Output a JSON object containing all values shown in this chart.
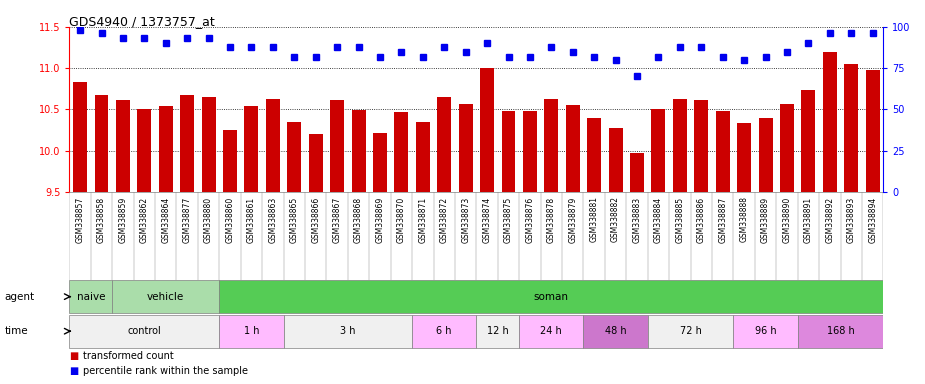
{
  "title": "GDS4940 / 1373757_at",
  "samples": [
    "GSM338857",
    "GSM338858",
    "GSM338859",
    "GSM338862",
    "GSM338864",
    "GSM338877",
    "GSM338880",
    "GSM338860",
    "GSM338861",
    "GSM338863",
    "GSM338865",
    "GSM338866",
    "GSM338867",
    "GSM338868",
    "GSM338869",
    "GSM338870",
    "GSM338871",
    "GSM338872",
    "GSM338873",
    "GSM338874",
    "GSM338875",
    "GSM338876",
    "GSM338878",
    "GSM338879",
    "GSM338881",
    "GSM338882",
    "GSM338883",
    "GSM338884",
    "GSM338885",
    "GSM338886",
    "GSM338887",
    "GSM338888",
    "GSM338889",
    "GSM338890",
    "GSM338891",
    "GSM338892",
    "GSM338893",
    "GSM338894"
  ],
  "bar_values": [
    10.83,
    10.67,
    10.61,
    10.5,
    10.54,
    10.67,
    10.65,
    10.25,
    10.54,
    10.63,
    10.35,
    10.2,
    10.62,
    10.49,
    10.22,
    10.47,
    10.35,
    10.65,
    10.57,
    11.0,
    10.48,
    10.48,
    10.63,
    10.55,
    10.4,
    10.27,
    9.97,
    10.5,
    10.63,
    10.61,
    10.48,
    10.33,
    10.4,
    10.57,
    10.74,
    11.2,
    11.05,
    10.98
  ],
  "percentile_values": [
    98,
    96,
    93,
    93,
    90,
    93,
    93,
    88,
    88,
    88,
    82,
    82,
    88,
    88,
    82,
    85,
    82,
    88,
    85,
    90,
    82,
    82,
    88,
    85,
    82,
    80,
    70,
    82,
    88,
    88,
    82,
    80,
    82,
    85,
    90,
    96,
    96,
    96
  ],
  "ylim_left": [
    9.5,
    11.5
  ],
  "ylim_right": [
    0,
    100
  ],
  "yticks_left": [
    9.5,
    10.0,
    10.5,
    11.0,
    11.5
  ],
  "yticks_right": [
    0,
    25,
    50,
    75,
    100
  ],
  "bar_color": "#cc0000",
  "dot_color": "#0000ee",
  "agent_groups": [
    {
      "label": "naive",
      "start": 0,
      "end": 2,
      "color": "#aaddaa"
    },
    {
      "label": "vehicle",
      "start": 2,
      "end": 7,
      "color": "#aaddaa"
    },
    {
      "label": "soman",
      "start": 7,
      "end": 38,
      "color": "#55cc55"
    }
  ],
  "time_groups": [
    {
      "label": "control",
      "start": 0,
      "end": 7,
      "color": "#f0f0f0"
    },
    {
      "label": "1 h",
      "start": 7,
      "end": 10,
      "color": "#ffbbff"
    },
    {
      "label": "3 h",
      "start": 10,
      "end": 16,
      "color": "#f0f0f0"
    },
    {
      "label": "6 h",
      "start": 16,
      "end": 19,
      "color": "#ffbbff"
    },
    {
      "label": "12 h",
      "start": 19,
      "end": 21,
      "color": "#f0f0f0"
    },
    {
      "label": "24 h",
      "start": 21,
      "end": 24,
      "color": "#ffbbff"
    },
    {
      "label": "48 h",
      "start": 24,
      "end": 27,
      "color": "#cc77cc"
    },
    {
      "label": "72 h",
      "start": 27,
      "end": 31,
      "color": "#f0f0f0"
    },
    {
      "label": "96 h",
      "start": 31,
      "end": 34,
      "color": "#ffbbff"
    },
    {
      "label": "168 h",
      "start": 34,
      "end": 38,
      "color": "#dd88dd"
    }
  ]
}
